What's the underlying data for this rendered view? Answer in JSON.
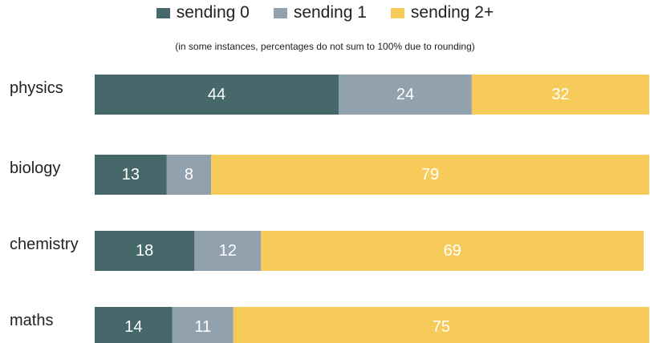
{
  "legend": [
    {
      "label": "sending 0",
      "color": "#46686b"
    },
    {
      "label": "sending 1",
      "color": "#92a1ae"
    },
    {
      "label": "sending 2+",
      "color": "#f6cb59"
    }
  ],
  "note": "(in some instances, percentages do not sum to 100% due to rounding)",
  "chart_data": {
    "type": "bar",
    "orientation": "horizontal",
    "stacked": true,
    "title": "",
    "xlabel": "",
    "ylabel": "",
    "xlim": [
      0,
      100
    ],
    "grid": false,
    "legend_position": "top",
    "categories": [
      "physics",
      "biology",
      "chemistry",
      "maths"
    ],
    "series": [
      {
        "name": "sending 0",
        "color": "#46686b",
        "values": [
          44,
          13,
          18,
          14
        ]
      },
      {
        "name": "sending 1",
        "color": "#92a1ae",
        "values": [
          24,
          8,
          12,
          11
        ]
      },
      {
        "name": "sending 2+",
        "color": "#f6cb59",
        "values": [
          32,
          79,
          69,
          75
        ]
      }
    ]
  }
}
